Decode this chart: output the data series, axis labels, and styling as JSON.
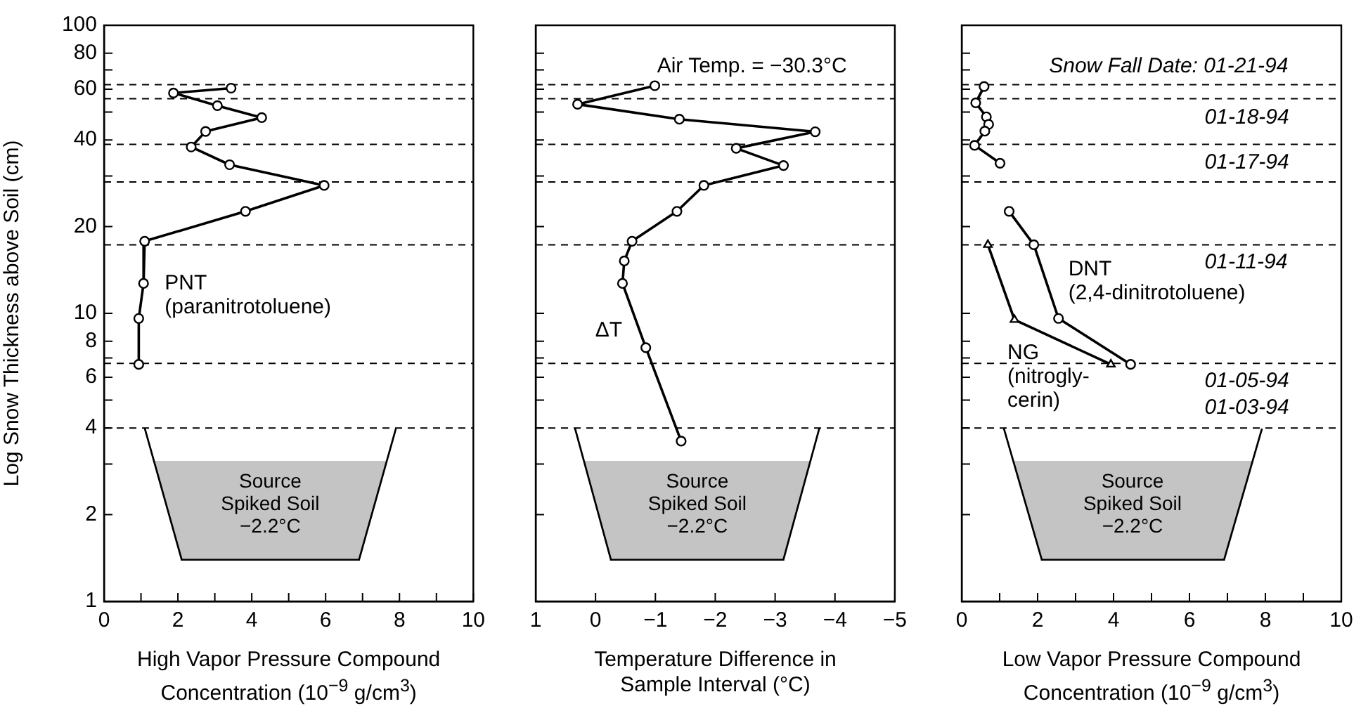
{
  "chart_data": [
    {
      "type": "line",
      "xlabel": "High Vapor Pressure Compound Concentration (10$^{−9}$ g/cm$^{3}$)",
      "ylabel": "Log Snow Thickness above Soil (cm)",
      "xlim": [
        0,
        10
      ],
      "xticks": [
        0,
        {
          "value": 1,
          "label": null
        },
        2,
        {
          "value": 3,
          "label": null
        },
        4,
        {
          "value": 5,
          "label": null
        },
        6,
        {
          "value": 7,
          "label": null
        },
        8,
        {
          "value": 9,
          "label": null
        },
        10
      ],
      "ylim": [
        1,
        100
      ],
      "yticks": [
        1,
        2,
        {
          "value": 3,
          "label": null
        },
        4,
        {
          "value": 5,
          "label": null
        },
        6,
        {
          "value": 7,
          "label": null
        },
        8,
        10,
        20,
        {
          "value": 30,
          "label": null
        },
        40,
        {
          "value": 50,
          "label": null
        },
        60,
        {
          "value": 70,
          "label": null
        },
        80,
        100
      ],
      "log": "y",
      "grid": false,
      "legend": false,
      "marker": "circle",
      "line_style": "solid",
      "ref_lines": [
        {
          "axis": "y",
          "value": 62.2,
          "line_style": "dashed",
          "color": "#000000"
        },
        {
          "axis": "y",
          "value": 55.6,
          "line_style": "dashed",
          "color": "#000000"
        },
        {
          "axis": "y",
          "value": 38.6,
          "line_style": "dashed",
          "color": "#000000"
        },
        {
          "axis": "y",
          "value": 28.6,
          "line_style": "dashed",
          "color": "#000000"
        },
        {
          "axis": "y",
          "value": 17.3,
          "line_style": "dashed",
          "color": "#000000"
        },
        {
          "axis": "y",
          "value": 6.7,
          "line_style": "dashed",
          "color": "#000000"
        },
        {
          "axis": "y",
          "value": 4,
          "line_style": "dashed",
          "color": "#000000"
        }
      ],
      "annotations": [
        "Source Spiked Soil −2.2°C"
      ],
      "series": [
        {
          "name": "PNT (paranitrotoluene)",
          "color": "#000000",
          "x": [
            3.44,
            1.88,
            3.07,
            4.27,
            2.75,
            2.36,
            3.4,
            5.96,
            3.83,
            1.1,
            1.07,
            0.94,
            0.94
          ],
          "values": [
            60.5,
            58.2,
            52.6,
            47.8,
            42.8,
            37.8,
            32.8,
            27.8,
            22.6,
            17.8,
            12.7,
            9.6,
            6.65
          ]
        }
      ]
    },
    {
      "type": "line",
      "xlabel": "Temperature Difference in Sample Interval (°C)",
      "xlim": [
        1,
        -5
      ],
      "xticks": [
        1,
        0,
        {
          "value": -1,
          "label": "−1"
        },
        {
          "value": -2,
          "label": "−2"
        },
        {
          "value": -3,
          "label": "−3"
        },
        {
          "value": -4,
          "label": "−4"
        },
        {
          "value": -5,
          "label": "−5"
        }
      ],
      "ylim": [
        1,
        100
      ],
      "yticks": [
        1,
        2,
        {
          "value": 3,
          "label": null
        },
        4,
        {
          "value": 5,
          "label": null
        },
        6,
        {
          "value": 7,
          "label": null
        },
        8,
        10,
        20,
        {
          "value": 30,
          "label": null
        },
        40,
        {
          "value": 50,
          "label": null
        },
        60,
        {
          "value": 70,
          "label": null
        },
        80,
        100
      ],
      "log": "y",
      "grid": false,
      "legend": false,
      "marker": "circle",
      "line_style": "solid",
      "tick_labels": "x",
      "ref_lines": [
        {
          "axis": "y",
          "value": 62.2,
          "line_style": "dashed",
          "color": "#000000"
        },
        {
          "axis": "y",
          "value": 55.6,
          "line_style": "dashed",
          "color": "#000000"
        },
        {
          "axis": "y",
          "value": 38.6,
          "line_style": "dashed",
          "color": "#000000"
        },
        {
          "axis": "y",
          "value": 28.6,
          "line_style": "dashed",
          "color": "#000000"
        },
        {
          "axis": "y",
          "value": 17.3,
          "line_style": "dashed",
          "color": "#000000"
        },
        {
          "axis": "y",
          "value": 6.7,
          "line_style": "dashed",
          "color": "#000000"
        },
        {
          "axis": "y",
          "value": 4,
          "line_style": "dashed",
          "color": "#000000"
        }
      ],
      "annotations": [
        "Source Spiked Soil −2.2°C",
        "Air Temp. = −30.3°C"
      ],
      "series": [
        {
          "name": "ΔT",
          "color": "#000000",
          "x": [
            -0.99,
            0.3,
            -1.4,
            -3.67,
            -2.35,
            -3.14,
            -1.81,
            -1.36,
            -0.61,
            -0.48,
            -0.45,
            -0.84,
            -1.43
          ],
          "values": [
            61.7,
            53.2,
            47.2,
            42.7,
            37.4,
            32.6,
            27.8,
            22.6,
            17.8,
            15.2,
            12.7,
            7.6,
            3.6
          ]
        }
      ]
    },
    {
      "type": "line",
      "xlabel": "Low Vapor Pressure Compound Concentration (10$^{−9}$ g/cm$^{3}$)",
      "xlim": [
        0,
        10
      ],
      "xticks": [
        0,
        {
          "value": 1,
          "label": null
        },
        2,
        {
          "value": 3,
          "label": null
        },
        4,
        {
          "value": 5,
          "label": null
        },
        6,
        {
          "value": 7,
          "label": null
        },
        8,
        {
          "value": 9,
          "label": null
        },
        10
      ],
      "ylim": [
        1,
        100
      ],
      "yticks": [
        1,
        2,
        {
          "value": 3,
          "label": null
        },
        4,
        {
          "value": 5,
          "label": null
        },
        6,
        {
          "value": 7,
          "label": null
        },
        8,
        10,
        20,
        {
          "value": 30,
          "label": null
        },
        40,
        {
          "value": 50,
          "label": null
        },
        60,
        {
          "value": 70,
          "label": null
        },
        80,
        100
      ],
      "log": "y",
      "grid": false,
      "legend": false,
      "marker": "circle",
      "line_style": "solid",
      "tick_labels": "x",
      "ref_lines": [
        {
          "axis": "y",
          "value": 62.2,
          "line_style": "dashed",
          "color": "#000000"
        },
        {
          "axis": "y",
          "value": 55.6,
          "line_style": "dashed",
          "color": "#000000"
        },
        {
          "axis": "y",
          "value": 38.6,
          "line_style": "dashed",
          "color": "#000000"
        },
        {
          "axis": "y",
          "value": 28.6,
          "line_style": "dashed",
          "color": "#000000"
        },
        {
          "axis": "y",
          "value": 17.3,
          "line_style": "dashed",
          "color": "#000000"
        },
        {
          "axis": "y",
          "value": 6.7,
          "line_style": "dashed",
          "color": "#000000"
        },
        {
          "axis": "y",
          "value": 4,
          "line_style": "dashed",
          "color": "#000000"
        }
      ],
      "annotations": [
        "Source Spiked Soil −2.2°C",
        "Snow Fall Date: 01-21-94",
        "01-18-94",
        "01-17-94",
        "01-11-94",
        "01-05-94",
        "01-03-94"
      ],
      "series": [
        {
          "color": "#000000",
          "x": [
            0.59,
            0.37,
            0.65,
            0.71,
            0.61,
            0.34,
            1.01
          ],
          "values": [
            61.3,
            53.8,
            48.1,
            45.3,
            42.9,
            38.3,
            33.2
          ]
        },
        {
          "name": "DNT (2,4-dinitrotoluene)",
          "color": "#000000",
          "x": [
            1.25,
            1.9,
            2.55,
            4.45
          ],
          "values": [
            22.6,
            17.3,
            9.6,
            6.65
          ]
        },
        {
          "name": "NG (nitrogly- cerin)",
          "color": "#000000",
          "marker": "triangle",
          "x": [
            0.69,
            1.39,
            3.93
          ],
          "values": [
            17.3,
            9.5,
            6.65
          ]
        }
      ]
    }
  ]
}
